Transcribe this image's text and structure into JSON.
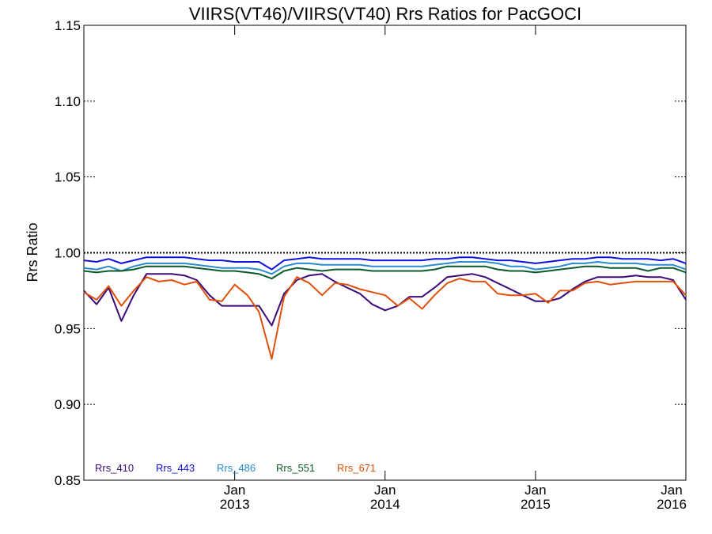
{
  "chart_data": {
    "type": "line",
    "title": "VIIRS(VT46)/VIIRS(VT40)  Rrs Ratios for PacGOCI",
    "xlabel": "",
    "ylabel": "Rrs Ratio",
    "ylim": [
      0.85,
      1.15
    ],
    "xlim": [
      "2012-01-01",
      "2016-01-01"
    ],
    "y_ticks": [
      "0.85",
      "0.90",
      "0.95",
      "1.00",
      "1.05",
      "1.10",
      "1.15"
    ],
    "x_ticks": [
      {
        "month": "Jan",
        "year": "2013"
      },
      {
        "month": "Jan",
        "year": "2014"
      },
      {
        "month": "Jan",
        "year": "2015"
      },
      {
        "month": "Jan",
        "year": "2016"
      }
    ],
    "reference_line": 1.0,
    "grid": false,
    "legend_position": "bottom-left",
    "x": [
      "2012-01-01",
      "2012-02-01",
      "2012-03-01",
      "2012-04-01",
      "2012-05-01",
      "2012-06-01",
      "2012-07-01",
      "2012-08-01",
      "2012-09-01",
      "2012-10-01",
      "2012-11-01",
      "2012-12-01",
      "2013-01-01",
      "2013-02-01",
      "2013-03-01",
      "2013-04-01",
      "2013-05-01",
      "2013-06-01",
      "2013-07-01",
      "2013-08-01",
      "2013-09-01",
      "2013-10-01",
      "2013-11-01",
      "2013-12-01",
      "2014-01-01",
      "2014-02-01",
      "2014-03-01",
      "2014-04-01",
      "2014-05-01",
      "2014-06-01",
      "2014-07-01",
      "2014-08-01",
      "2014-09-01",
      "2014-10-01",
      "2014-11-01",
      "2014-12-01",
      "2015-01-01",
      "2015-02-01",
      "2015-03-01",
      "2015-04-01",
      "2015-05-01",
      "2015-06-01",
      "2015-07-01",
      "2015-08-01",
      "2015-09-01",
      "2015-10-01",
      "2015-11-01",
      "2015-12-01",
      "2016-01-01"
    ],
    "series": [
      {
        "name": "Rrs_410",
        "color": "#3b0a7a",
        "values": [
          0.975,
          0.966,
          0.977,
          0.955,
          0.972,
          0.986,
          0.986,
          0.986,
          0.985,
          0.982,
          0.972,
          0.965,
          0.965,
          0.965,
          0.965,
          0.952,
          0.973,
          0.982,
          0.985,
          0.986,
          0.981,
          0.977,
          0.973,
          0.966,
          0.962,
          0.965,
          0.971,
          0.971,
          0.977,
          0.984,
          0.985,
          0.986,
          0.984,
          0.98,
          0.976,
          0.972,
          0.968,
          0.968,
          0.97,
          0.976,
          0.981,
          0.984,
          0.984,
          0.984,
          0.985,
          0.984,
          0.984,
          0.982,
          0.969
        ]
      },
      {
        "name": "Rrs_443",
        "color": "#1010e0",
        "values": [
          0.995,
          0.994,
          0.996,
          0.993,
          0.995,
          0.997,
          0.997,
          0.997,
          0.997,
          0.996,
          0.995,
          0.995,
          0.994,
          0.994,
          0.994,
          0.989,
          0.995,
          0.996,
          0.997,
          0.996,
          0.996,
          0.996,
          0.996,
          0.995,
          0.995,
          0.995,
          0.995,
          0.995,
          0.996,
          0.996,
          0.997,
          0.997,
          0.996,
          0.995,
          0.995,
          0.994,
          0.993,
          0.994,
          0.995,
          0.996,
          0.996,
          0.997,
          0.997,
          0.996,
          0.996,
          0.996,
          0.995,
          0.996,
          0.993
        ]
      },
      {
        "name": "Rrs_486",
        "color": "#2a8ad0",
        "values": [
          0.99,
          0.989,
          0.991,
          0.988,
          0.991,
          0.993,
          0.993,
          0.993,
          0.993,
          0.992,
          0.991,
          0.99,
          0.99,
          0.99,
          0.989,
          0.986,
          0.991,
          0.993,
          0.993,
          0.992,
          0.992,
          0.992,
          0.992,
          0.991,
          0.991,
          0.991,
          0.991,
          0.991,
          0.992,
          0.993,
          0.994,
          0.994,
          0.994,
          0.993,
          0.991,
          0.991,
          0.989,
          0.99,
          0.991,
          0.993,
          0.993,
          0.994,
          0.993,
          0.993,
          0.993,
          0.992,
          0.992,
          0.992,
          0.989
        ]
      },
      {
        "name": "Rrs_551",
        "color": "#0b5a2a",
        "values": [
          0.988,
          0.987,
          0.988,
          0.988,
          0.989,
          0.991,
          0.991,
          0.991,
          0.991,
          0.99,
          0.989,
          0.988,
          0.988,
          0.987,
          0.986,
          0.983,
          0.988,
          0.99,
          0.989,
          0.988,
          0.989,
          0.989,
          0.989,
          0.988,
          0.988,
          0.988,
          0.988,
          0.988,
          0.989,
          0.991,
          0.991,
          0.991,
          0.991,
          0.989,
          0.988,
          0.988,
          0.987,
          0.988,
          0.989,
          0.99,
          0.991,
          0.991,
          0.99,
          0.99,
          0.99,
          0.988,
          0.99,
          0.99,
          0.987
        ]
      },
      {
        "name": "Rrs_671",
        "color": "#e0500a",
        "values": [
          0.974,
          0.969,
          0.978,
          0.965,
          0.975,
          0.984,
          0.981,
          0.982,
          0.979,
          0.981,
          0.969,
          0.968,
          0.979,
          0.972,
          0.961,
          0.93,
          0.971,
          0.984,
          0.98,
          0.972,
          0.98,
          0.979,
          0.976,
          0.974,
          0.972,
          0.965,
          0.97,
          0.963,
          0.972,
          0.98,
          0.983,
          0.981,
          0.981,
          0.973,
          0.972,
          0.972,
          0.973,
          0.967,
          0.975,
          0.975,
          0.98,
          0.981,
          0.979,
          0.98,
          0.981,
          0.981,
          0.981,
          0.981,
          0.972
        ]
      }
    ]
  }
}
